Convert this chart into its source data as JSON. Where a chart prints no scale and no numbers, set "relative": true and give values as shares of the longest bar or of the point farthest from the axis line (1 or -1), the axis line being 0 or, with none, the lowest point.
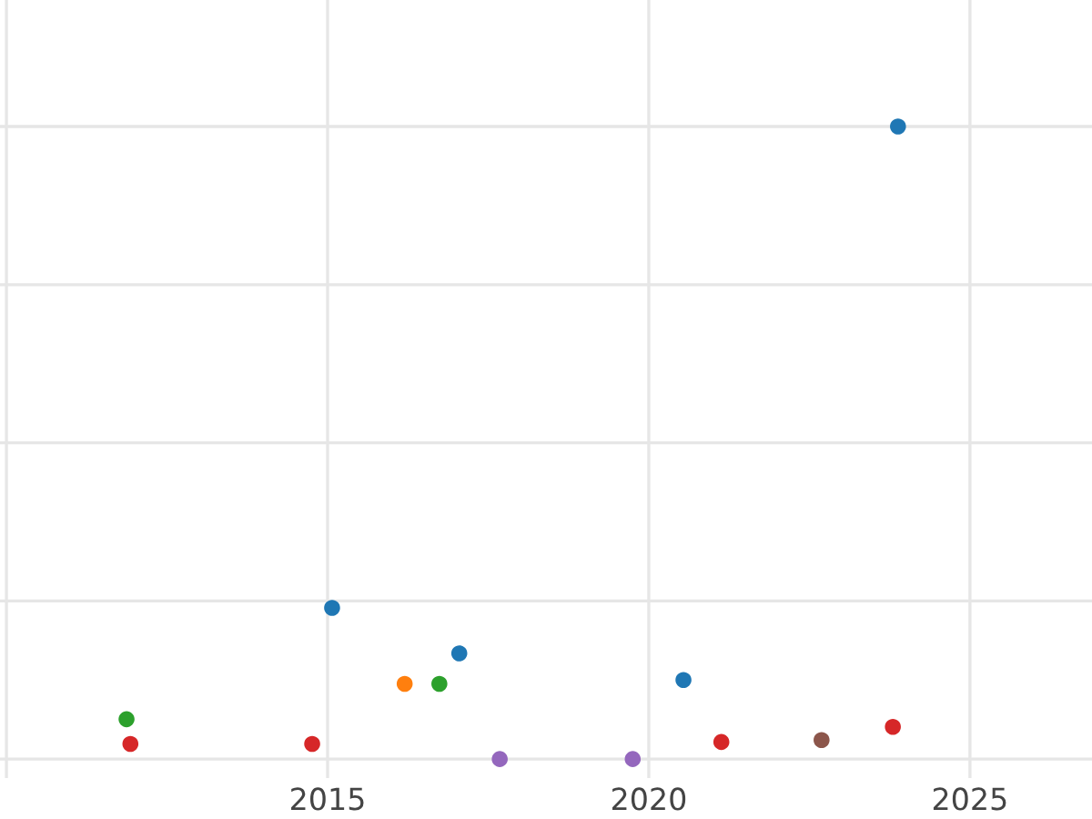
{
  "chart_data": {
    "type": "scatter",
    "relative": true,
    "grid": true,
    "marker": "circle",
    "x": [
      2011.87,
      2011.93,
      2014.76,
      2015.07,
      2016.2,
      2016.74,
      2017.05,
      2017.68,
      2019.75,
      2020.54,
      2021.13,
      2022.69,
      2023.8,
      2023.88
    ],
    "values": [
      0.063,
      0.024,
      0.024,
      0.239,
      0.119,
      0.119,
      0.167,
      0,
      0,
      0.125,
      0.027,
      0.03,
      0.051,
      1
    ],
    "colors": [
      "#2ca02c",
      "#d62728",
      "#d62728",
      "#1f77b4",
      "#ff7f0e",
      "#2ca02c",
      "#1f77b4",
      "#9467bd",
      "#9467bd",
      "#1f77b4",
      "#d62728",
      "#8c564b",
      "#d62728",
      "#1f77b4"
    ],
    "xlim": [
      2009.9,
      2026.9
    ],
    "xticks": [
      {
        "value": 2010,
        "label": null
      },
      2015,
      2020,
      2025
    ]
  }
}
